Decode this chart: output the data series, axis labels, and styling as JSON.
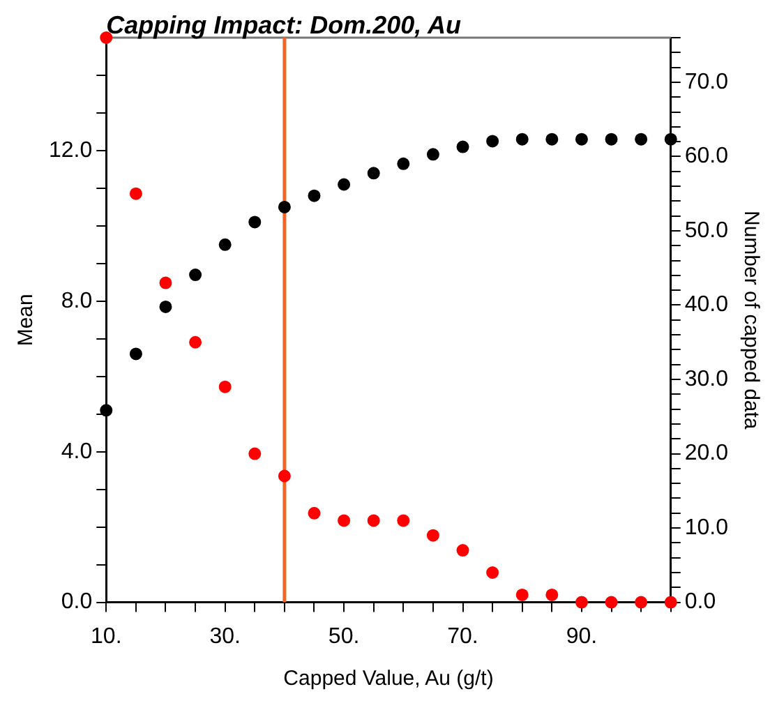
{
  "chart_data": {
    "type": "scatter",
    "title": "Capping Impact: Dom.200, Au",
    "xlabel": "Capped Value, Au (g/t)",
    "ylabel": "Mean",
    "y2label": "Number of capped data",
    "x": [
      10,
      15,
      20,
      25,
      30,
      35,
      40,
      45,
      50,
      55,
      60,
      65,
      70,
      75,
      80,
      85,
      90,
      95,
      100,
      105
    ],
    "series": [
      {
        "color": "#000000",
        "values": [
          5.1,
          6.6,
          7.85,
          8.7,
          9.5,
          10.1,
          10.5,
          10.8,
          11.1,
          11.4,
          11.65,
          11.9,
          12.1,
          12.25,
          12.3,
          12.3,
          12.3,
          12.3,
          12.3,
          12.3
        ]
      },
      {
        "color": "#ff0000",
        "axis": "y2",
        "values": [
          76,
          55,
          43,
          35,
          29,
          20,
          17,
          12,
          11,
          11,
          11,
          9,
          7,
          4,
          1,
          1,
          0,
          0,
          0,
          0
        ]
      }
    ],
    "xlim": [
      10,
      105
    ],
    "xticks": [
      {
        "value": 10,
        "label": "10."
      },
      {
        "value": 15,
        "label": null
      },
      {
        "value": 20,
        "label": null
      },
      {
        "value": 25,
        "label": null
      },
      {
        "value": 30,
        "label": "30."
      },
      {
        "value": 35,
        "label": null
      },
      {
        "value": 40,
        "label": null
      },
      {
        "value": 45,
        "label": null
      },
      {
        "value": 50,
        "label": "50."
      },
      {
        "value": 55,
        "label": null
      },
      {
        "value": 60,
        "label": null
      },
      {
        "value": 65,
        "label": null
      },
      {
        "value": 70,
        "label": "70."
      },
      {
        "value": 75,
        "label": null
      },
      {
        "value": 80,
        "label": null
      },
      {
        "value": 85,
        "label": null
      },
      {
        "value": 90,
        "label": "90."
      },
      {
        "value": 95,
        "label": null
      },
      {
        "value": 100,
        "label": null
      },
      {
        "value": 105,
        "label": null
      }
    ],
    "ylim": [
      0,
      15
    ],
    "yticks": [
      {
        "value": 0,
        "label": "0.0"
      },
      {
        "value": 1,
        "label": null
      },
      {
        "value": 2,
        "label": null
      },
      {
        "value": 3,
        "label": null
      },
      {
        "value": 4,
        "label": "4.0"
      },
      {
        "value": 5,
        "label": null
      },
      {
        "value": 6,
        "label": null
      },
      {
        "value": 7,
        "label": null
      },
      {
        "value": 8,
        "label": "8.0"
      },
      {
        "value": 9,
        "label": null
      },
      {
        "value": 10,
        "label": null
      },
      {
        "value": 11,
        "label": null
      },
      {
        "value": 12,
        "label": "12.0"
      },
      {
        "value": 13,
        "label": null
      },
      {
        "value": 14,
        "label": null
      }
    ],
    "y2lim": [
      0,
      76
    ],
    "y2ticks": [
      {
        "value": 0,
        "label": "0.0"
      },
      {
        "value": 2,
        "label": null
      },
      {
        "value": 4,
        "label": null
      },
      {
        "value": 6,
        "label": null
      },
      {
        "value": 8,
        "label": null
      },
      {
        "value": 10,
        "label": "10.0"
      },
      {
        "value": 12,
        "label": null
      },
      {
        "value": 14,
        "label": null
      },
      {
        "value": 16,
        "label": null
      },
      {
        "value": 18,
        "label": null
      },
      {
        "value": 20,
        "label": "20.0"
      },
      {
        "value": 22,
        "label": null
      },
      {
        "value": 24,
        "label": null
      },
      {
        "value": 26,
        "label": null
      },
      {
        "value": 28,
        "label": null
      },
      {
        "value": 30,
        "label": "30.0"
      },
      {
        "value": 32,
        "label": null
      },
      {
        "value": 34,
        "label": null
      },
      {
        "value": 36,
        "label": null
      },
      {
        "value": 38,
        "label": null
      },
      {
        "value": 40,
        "label": "40.0"
      },
      {
        "value": 42,
        "label": null
      },
      {
        "value": 44,
        "label": null
      },
      {
        "value": 46,
        "label": null
      },
      {
        "value": 48,
        "label": null
      },
      {
        "value": 50,
        "label": "50.0"
      },
      {
        "value": 52,
        "label": null
      },
      {
        "value": 54,
        "label": null
      },
      {
        "value": 56,
        "label": null
      },
      {
        "value": 58,
        "label": null
      },
      {
        "value": 60,
        "label": "60.0"
      },
      {
        "value": 62,
        "label": null
      },
      {
        "value": 64,
        "label": null
      },
      {
        "value": 66,
        "label": null
      },
      {
        "value": 68,
        "label": null
      },
      {
        "value": 70,
        "label": "70.0"
      },
      {
        "value": 72,
        "label": null
      },
      {
        "value": 74,
        "label": null
      },
      {
        "value": 76,
        "label": null
      }
    ],
    "ref_lines": [
      {
        "axis": "x",
        "value": 40,
        "color": "#f26522"
      }
    ],
    "marker": "circle",
    "grid": false,
    "legend": false
  }
}
